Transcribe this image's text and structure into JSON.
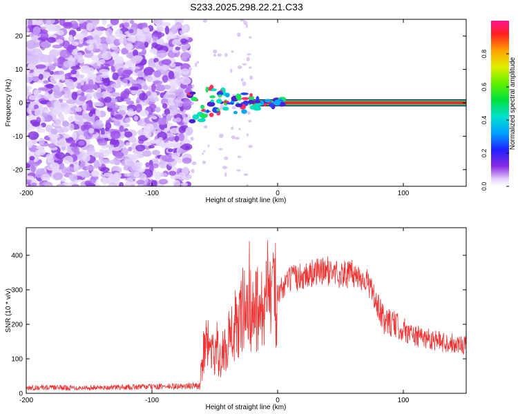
{
  "title": "S233.2025.298.22.21.C33",
  "chart_data": [
    {
      "type": "heatmap",
      "xlabel": "Height of straight line (km)",
      "ylabel": "Frequency (Hz)",
      "xlim": [
        -200,
        150
      ],
      "ylim": [
        -25,
        25
      ],
      "xticks": [
        -200,
        -100,
        0,
        100
      ],
      "yticks": [
        -20,
        -10,
        0,
        10,
        20
      ],
      "noise_region_x": [
        -200,
        -70
      ],
      "transition_region_x": [
        -70,
        -20
      ],
      "carrier_line": {
        "frequency": 0,
        "x_start": -20,
        "x_end": 150,
        "normalized_amplitude": 0.95
      },
      "colorbar": {
        "label": "Normalized spectral amplitude",
        "range": [
          0,
          1
        ],
        "ticks": [
          "0.0",
          "0.2",
          "0.4",
          "0.6",
          "0.8"
        ]
      }
    },
    {
      "type": "line",
      "xlabel": "Height of straight line (km)",
      "ylabel": "SNR (10 * v/v)",
      "xlim": [
        -200,
        150
      ],
      "ylim": [
        0,
        480
      ],
      "xticks": [
        -200,
        -100,
        0,
        100
      ],
      "yticks": [
        0,
        100,
        200,
        300,
        400
      ],
      "series": [
        {
          "name": "SNR",
          "color": "#ee3333",
          "x": [
            -200,
            -150,
            -100,
            -75,
            -62,
            -58,
            -50,
            -45,
            -40,
            -35,
            -30,
            -27,
            -25,
            -20,
            -15,
            -10,
            -5,
            0,
            5,
            10,
            20,
            30,
            40,
            50,
            60,
            70,
            75,
            80,
            85,
            90,
            100,
            110,
            120,
            130,
            140,
            150
          ],
          "values": [
            17,
            16,
            19,
            20,
            22,
            140,
            120,
            90,
            150,
            170,
            210,
            260,
            240,
            230,
            250,
            240,
            280,
            290,
            310,
            330,
            340,
            350,
            355,
            345,
            345,
            330,
            300,
            240,
            210,
            205,
            185,
            165,
            160,
            150,
            145,
            140
          ]
        }
      ]
    }
  ]
}
